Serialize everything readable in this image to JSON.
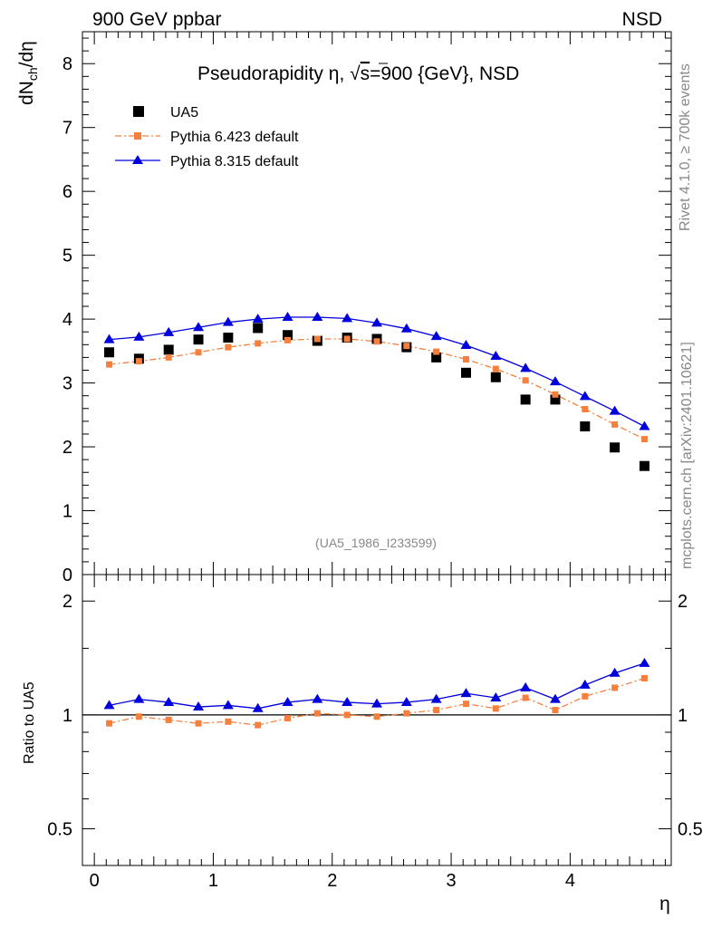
{
  "header": {
    "left_label": "900 GeV ppbar",
    "right_label": "NSD"
  },
  "side_labels": {
    "rivet": "Rivet 4.1.0, ≥ 700k events",
    "mcplots": "mcplots.cern.ch [arXiv:2401.10621]"
  },
  "colors": {
    "data": "#000000",
    "pythia6": "#f5803e",
    "pythia8": "#0000dd"
  },
  "chart_data": [
    {
      "type": "scatter",
      "name": "main",
      "title_prefix": "Pseudorapidity ",
      "title_eta": "η",
      "title_sqrt": "√",
      "title_s": "s",
      "title_rest": "=900 {GeV}, NSD",
      "ylabel_main": "dN",
      "ylabel_sub": "ch",
      "ylabel_rest": "/dη",
      "xlabel": "η",
      "xlim": [
        -0.1,
        4.85
      ],
      "ylim": [
        0,
        8.5
      ],
      "yticks": [
        0,
        1,
        2,
        3,
        4,
        5,
        6,
        7,
        8
      ],
      "xticks": [
        0,
        1,
        2,
        3,
        4
      ],
      "x": [
        0.125,
        0.375,
        0.625,
        0.875,
        1.125,
        1.375,
        1.625,
        1.875,
        2.125,
        2.375,
        2.625,
        2.875,
        3.125,
        3.375,
        3.625,
        3.875,
        4.125,
        4.375,
        4.625
      ],
      "series": [
        {
          "name": "UA5",
          "marker": "square",
          "values": [
            3.48,
            3.38,
            3.52,
            3.68,
            3.71,
            3.86,
            3.75,
            3.66,
            3.71,
            3.69,
            3.56,
            3.4,
            3.16,
            3.09,
            2.74,
            2.74,
            2.32,
            1.99,
            1.7
          ]
        },
        {
          "name": "Pythia 6.423 default",
          "marker": "small-square",
          "line": "dashdot",
          "values": [
            3.29,
            3.34,
            3.4,
            3.48,
            3.56,
            3.62,
            3.67,
            3.69,
            3.69,
            3.65,
            3.58,
            3.49,
            3.37,
            3.22,
            3.04,
            2.82,
            2.59,
            2.35,
            2.12
          ]
        },
        {
          "name": "Pythia 8.315 default",
          "marker": "triangle",
          "line": "solid",
          "values": [
            3.68,
            3.72,
            3.79,
            3.87,
            3.95,
            4.0,
            4.03,
            4.03,
            4.01,
            3.94,
            3.85,
            3.73,
            3.59,
            3.42,
            3.23,
            3.02,
            2.79,
            2.56,
            2.32
          ]
        }
      ],
      "annotation": "(UA5_1986_I233599)"
    },
    {
      "type": "line",
      "name": "ratio",
      "ylabel": "Ratio to UA5",
      "ylim": [
        0.4,
        2.35
      ],
      "yscale": "log",
      "ytick_labels": [
        "0.5",
        "1",
        "2"
      ],
      "xtick_labels": [
        "0",
        "1",
        "2",
        "3",
        "4"
      ],
      "series": [
        {
          "name": "Pythia 6.423 default",
          "values": [
            0.95,
            0.99,
            0.97,
            0.95,
            0.96,
            0.94,
            0.98,
            1.01,
            1.0,
            0.99,
            1.01,
            1.03,
            1.07,
            1.04,
            1.11,
            1.03,
            1.12,
            1.18,
            1.25
          ]
        },
        {
          "name": "Pythia 8.315 default",
          "values": [
            1.06,
            1.1,
            1.08,
            1.05,
            1.06,
            1.04,
            1.08,
            1.1,
            1.08,
            1.07,
            1.08,
            1.1,
            1.14,
            1.11,
            1.18,
            1.1,
            1.2,
            1.29,
            1.37
          ]
        }
      ]
    }
  ]
}
